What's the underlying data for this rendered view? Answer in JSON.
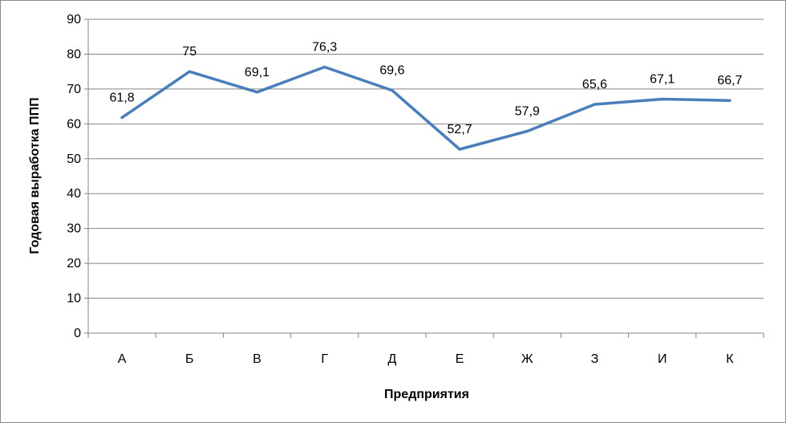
{
  "chart_data": {
    "type": "line",
    "categories": [
      "А",
      "Б",
      "В",
      "Г",
      "Д",
      "Е",
      "Ж",
      "З",
      "И",
      "К"
    ],
    "values": [
      61.8,
      75,
      69.1,
      76.3,
      69.6,
      52.7,
      57.9,
      65.6,
      67.1,
      66.7
    ],
    "data_labels": [
      "61,8",
      "75",
      "69,1",
      "76,3",
      "69,6",
      "52,7",
      "57,9",
      "65,6",
      "67,1",
      "66,7"
    ],
    "xlabel": "Предприятия",
    "ylabel": "Годовая выработка ППП",
    "ylim": [
      0,
      90
    ],
    "yticks": [
      "0",
      "10",
      "20",
      "30",
      "40",
      "50",
      "60",
      "70",
      "80",
      "90"
    ],
    "grid": "horizontal",
    "line_color": "#4a7ebb",
    "grid_color": "#858585"
  }
}
